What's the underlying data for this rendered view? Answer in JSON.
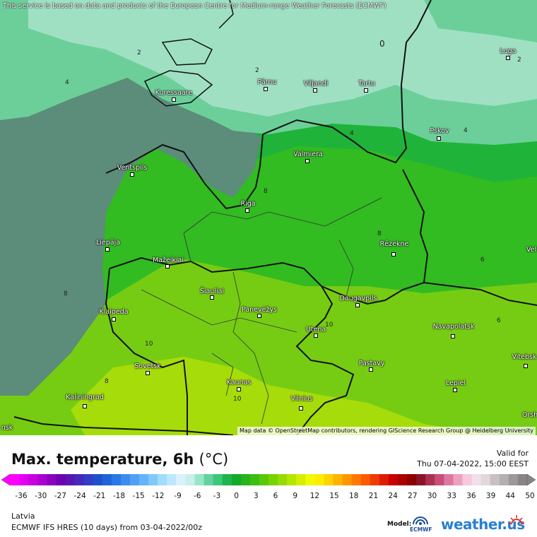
{
  "map": {
    "notice": "This service is based on data and products of the European Centre for Medium-range Weather Forecasts (ECMWF)",
    "attribution": "Map data © OpenStreetMap contributors, rendering GIScience Research Group @ Heidelberg University",
    "colors": {
      "sea_grey": "#5c8c7a",
      "band_2": "#9fe0c3",
      "band_4": "#6ccf9a",
      "band_6": "#1fb33a",
      "band_8": "#33bb22",
      "band_10": "#76cc13",
      "band_12": "#a6dc0a"
    },
    "cities": [
      {
        "name": "Kuressaare"
      },
      {
        "name": "Pärnu"
      },
      {
        "name": "Viljandi"
      },
      {
        "name": "Tartu"
      },
      {
        "name": "Luga"
      },
      {
        "name": "Pskov"
      },
      {
        "name": "Valmiera"
      },
      {
        "name": "Ventspils"
      },
      {
        "name": "Riga"
      },
      {
        "name": "Liepāja"
      },
      {
        "name": "Rēzekne"
      },
      {
        "name": "Mažeikiai"
      },
      {
        "name": "Šiauliai"
      },
      {
        "name": "Panevėžys"
      },
      {
        "name": "Daugavpils"
      },
      {
        "name": "Klaipeda"
      },
      {
        "name": "Utena"
      },
      {
        "name": "Navapolatsk"
      },
      {
        "name": "Sovetsk"
      },
      {
        "name": "Pastavy"
      },
      {
        "name": "Vitebsk"
      },
      {
        "name": "Kaunas"
      },
      {
        "name": "Lepiel"
      },
      {
        "name": "Kaliningrad"
      },
      {
        "name": "Vilnius"
      },
      {
        "name": "Orsh"
      },
      {
        "name": "Vel"
      },
      {
        "name": "nsk"
      }
    ],
    "isolines": [
      "2",
      "4",
      "2",
      "0",
      "2",
      "4",
      "4",
      "8",
      "8",
      "6",
      "8",
      "10",
      "6",
      "10",
      "8",
      "10"
    ]
  },
  "legend": {
    "title": "Max. temperature, 6h",
    "unit": "(°C)",
    "valid_label": "Valid for",
    "valid_date": "Thu 07-04-2022, 15:00 EEST",
    "ticks": [
      "-36",
      "-30",
      "-27",
      "-24",
      "-21",
      "-18",
      "-15",
      "-12",
      "-9",
      "-6",
      "-3",
      "0",
      "3",
      "6",
      "9",
      "12",
      "15",
      "18",
      "21",
      "24",
      "27",
      "30",
      "33",
      "36",
      "39",
      "44",
      "50"
    ],
    "region": "Latvia",
    "model": "ECMWF IFS HRES (10 days) from 03-04-2022/00z",
    "model_label": "Model:",
    "model_logo": "ECMWF",
    "brand": "weather.us",
    "scale_colors": [
      "#ff00ff",
      "#e400f0",
      "#c800e0",
      "#aa00d0",
      "#8c00c0",
      "#6e00b0",
      "#5a14b4",
      "#4628bc",
      "#323cc4",
      "#1e50cc",
      "#1e64dc",
      "#2878e6",
      "#3c8cf0",
      "#50a0f5",
      "#64b4fa",
      "#82c8fc",
      "#a0dcfe",
      "#bee8ff",
      "#dcf0ff",
      "#c8f0e6",
      "#96e6c8",
      "#64d2a0",
      "#3cc878",
      "#1eb450",
      "#14aa28",
      "#28b41e",
      "#3cbe14",
      "#5ac80a",
      "#78d200",
      "#96dc00",
      "#b4e600",
      "#d2f000",
      "#f0fa00",
      "#ffeb00",
      "#ffd200",
      "#ffb400",
      "#ff9600",
      "#ff7800",
      "#ff5a00",
      "#f03c00",
      "#dc1e00",
      "#c80000",
      "#aa0000",
      "#8c0000",
      "#8c1428",
      "#aa3250",
      "#c85078",
      "#dc78a0",
      "#eea0c0",
      "#f8c8dc",
      "#f0e0e8",
      "#e0d8dc",
      "#c8c0c4",
      "#b4b0b0",
      "#9c9898",
      "#888484"
    ]
  }
}
